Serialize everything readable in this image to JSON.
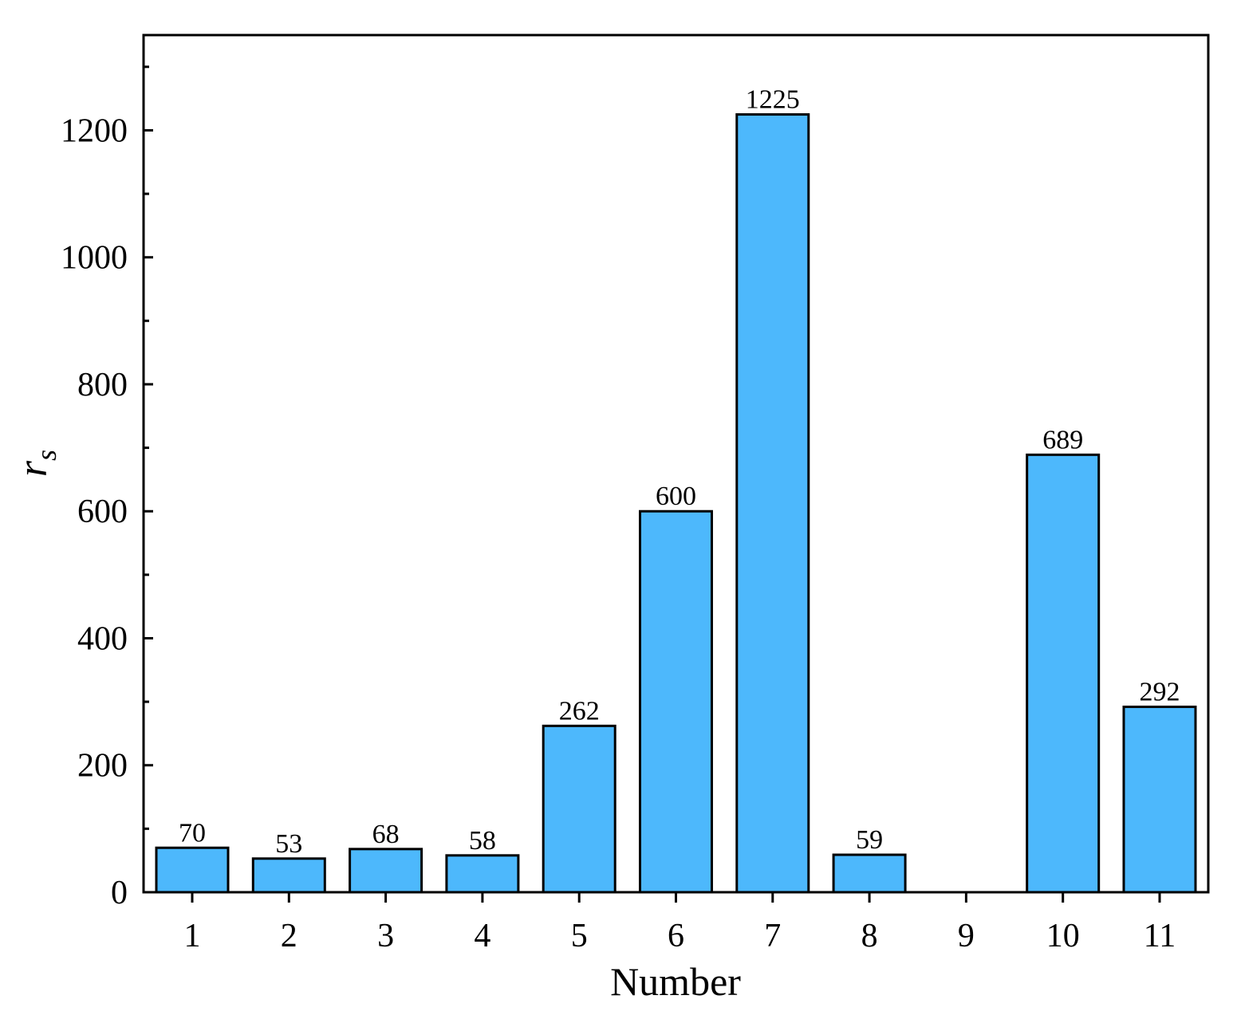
{
  "chart_data": {
    "type": "bar",
    "categories": [
      "1",
      "2",
      "3",
      "4",
      "5",
      "6",
      "7",
      "8",
      "9",
      "10",
      "11"
    ],
    "values": [
      70,
      53,
      68,
      58,
      262,
      600,
      1225,
      59,
      null,
      689,
      292
    ],
    "data_labels": [
      "70",
      "53",
      "68",
      "58",
      "262",
      "600",
      "1225",
      "59",
      "",
      "689",
      "292"
    ],
    "xlabel": "Number",
    "ylabel": {
      "main": "r",
      "subscript": "s"
    },
    "ylim": [
      0,
      1350
    ],
    "yticks": [
      0,
      200,
      400,
      600,
      800,
      1000,
      1200
    ],
    "yminor_ticks": [
      100,
      300,
      500,
      700,
      900,
      1100,
      1300
    ],
    "grid": false,
    "legend": "none",
    "colors": {
      "bar_fill": "#4db8fc",
      "bar_stroke": "#000000",
      "axis": "#000000"
    }
  }
}
